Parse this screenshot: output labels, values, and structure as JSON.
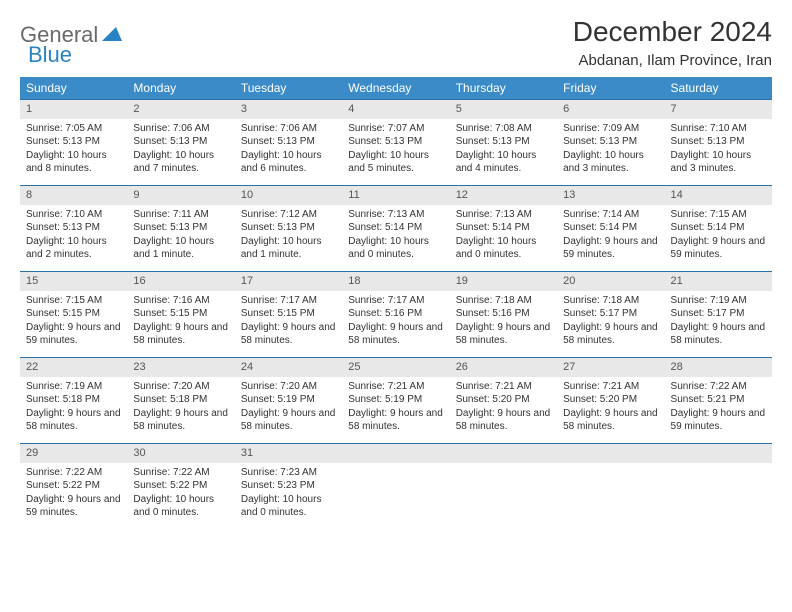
{
  "logo": {
    "part1": "General",
    "part2": "Blue"
  },
  "title": "December 2024",
  "location": "Abdanan, Ilam Province, Iran",
  "colors": {
    "header_bg": "#3b8bc8",
    "header_text": "#ffffff",
    "cell_border": "#2a6fa5",
    "daynum_bg": "#e8e8e8",
    "logo_gray": "#6b6b6b",
    "logo_blue": "#2984c5"
  },
  "weekdays": [
    "Sunday",
    "Monday",
    "Tuesday",
    "Wednesday",
    "Thursday",
    "Friday",
    "Saturday"
  ],
  "weeks": [
    [
      {
        "n": "1",
        "sr": "Sunrise: 7:05 AM",
        "ss": "Sunset: 5:13 PM",
        "dl": "Daylight: 10 hours and 8 minutes."
      },
      {
        "n": "2",
        "sr": "Sunrise: 7:06 AM",
        "ss": "Sunset: 5:13 PM",
        "dl": "Daylight: 10 hours and 7 minutes."
      },
      {
        "n": "3",
        "sr": "Sunrise: 7:06 AM",
        "ss": "Sunset: 5:13 PM",
        "dl": "Daylight: 10 hours and 6 minutes."
      },
      {
        "n": "4",
        "sr": "Sunrise: 7:07 AM",
        "ss": "Sunset: 5:13 PM",
        "dl": "Daylight: 10 hours and 5 minutes."
      },
      {
        "n": "5",
        "sr": "Sunrise: 7:08 AM",
        "ss": "Sunset: 5:13 PM",
        "dl": "Daylight: 10 hours and 4 minutes."
      },
      {
        "n": "6",
        "sr": "Sunrise: 7:09 AM",
        "ss": "Sunset: 5:13 PM",
        "dl": "Daylight: 10 hours and 3 minutes."
      },
      {
        "n": "7",
        "sr": "Sunrise: 7:10 AM",
        "ss": "Sunset: 5:13 PM",
        "dl": "Daylight: 10 hours and 3 minutes."
      }
    ],
    [
      {
        "n": "8",
        "sr": "Sunrise: 7:10 AM",
        "ss": "Sunset: 5:13 PM",
        "dl": "Daylight: 10 hours and 2 minutes."
      },
      {
        "n": "9",
        "sr": "Sunrise: 7:11 AM",
        "ss": "Sunset: 5:13 PM",
        "dl": "Daylight: 10 hours and 1 minute."
      },
      {
        "n": "10",
        "sr": "Sunrise: 7:12 AM",
        "ss": "Sunset: 5:13 PM",
        "dl": "Daylight: 10 hours and 1 minute."
      },
      {
        "n": "11",
        "sr": "Sunrise: 7:13 AM",
        "ss": "Sunset: 5:14 PM",
        "dl": "Daylight: 10 hours and 0 minutes."
      },
      {
        "n": "12",
        "sr": "Sunrise: 7:13 AM",
        "ss": "Sunset: 5:14 PM",
        "dl": "Daylight: 10 hours and 0 minutes."
      },
      {
        "n": "13",
        "sr": "Sunrise: 7:14 AM",
        "ss": "Sunset: 5:14 PM",
        "dl": "Daylight: 9 hours and 59 minutes."
      },
      {
        "n": "14",
        "sr": "Sunrise: 7:15 AM",
        "ss": "Sunset: 5:14 PM",
        "dl": "Daylight: 9 hours and 59 minutes."
      }
    ],
    [
      {
        "n": "15",
        "sr": "Sunrise: 7:15 AM",
        "ss": "Sunset: 5:15 PM",
        "dl": "Daylight: 9 hours and 59 minutes."
      },
      {
        "n": "16",
        "sr": "Sunrise: 7:16 AM",
        "ss": "Sunset: 5:15 PM",
        "dl": "Daylight: 9 hours and 58 minutes."
      },
      {
        "n": "17",
        "sr": "Sunrise: 7:17 AM",
        "ss": "Sunset: 5:15 PM",
        "dl": "Daylight: 9 hours and 58 minutes."
      },
      {
        "n": "18",
        "sr": "Sunrise: 7:17 AM",
        "ss": "Sunset: 5:16 PM",
        "dl": "Daylight: 9 hours and 58 minutes."
      },
      {
        "n": "19",
        "sr": "Sunrise: 7:18 AM",
        "ss": "Sunset: 5:16 PM",
        "dl": "Daylight: 9 hours and 58 minutes."
      },
      {
        "n": "20",
        "sr": "Sunrise: 7:18 AM",
        "ss": "Sunset: 5:17 PM",
        "dl": "Daylight: 9 hours and 58 minutes."
      },
      {
        "n": "21",
        "sr": "Sunrise: 7:19 AM",
        "ss": "Sunset: 5:17 PM",
        "dl": "Daylight: 9 hours and 58 minutes."
      }
    ],
    [
      {
        "n": "22",
        "sr": "Sunrise: 7:19 AM",
        "ss": "Sunset: 5:18 PM",
        "dl": "Daylight: 9 hours and 58 minutes."
      },
      {
        "n": "23",
        "sr": "Sunrise: 7:20 AM",
        "ss": "Sunset: 5:18 PM",
        "dl": "Daylight: 9 hours and 58 minutes."
      },
      {
        "n": "24",
        "sr": "Sunrise: 7:20 AM",
        "ss": "Sunset: 5:19 PM",
        "dl": "Daylight: 9 hours and 58 minutes."
      },
      {
        "n": "25",
        "sr": "Sunrise: 7:21 AM",
        "ss": "Sunset: 5:19 PM",
        "dl": "Daylight: 9 hours and 58 minutes."
      },
      {
        "n": "26",
        "sr": "Sunrise: 7:21 AM",
        "ss": "Sunset: 5:20 PM",
        "dl": "Daylight: 9 hours and 58 minutes."
      },
      {
        "n": "27",
        "sr": "Sunrise: 7:21 AM",
        "ss": "Sunset: 5:20 PM",
        "dl": "Daylight: 9 hours and 58 minutes."
      },
      {
        "n": "28",
        "sr": "Sunrise: 7:22 AM",
        "ss": "Sunset: 5:21 PM",
        "dl": "Daylight: 9 hours and 59 minutes."
      }
    ],
    [
      {
        "n": "29",
        "sr": "Sunrise: 7:22 AM",
        "ss": "Sunset: 5:22 PM",
        "dl": "Daylight: 9 hours and 59 minutes."
      },
      {
        "n": "30",
        "sr": "Sunrise: 7:22 AM",
        "ss": "Sunset: 5:22 PM",
        "dl": "Daylight: 10 hours and 0 minutes."
      },
      {
        "n": "31",
        "sr": "Sunrise: 7:23 AM",
        "ss": "Sunset: 5:23 PM",
        "dl": "Daylight: 10 hours and 0 minutes."
      },
      null,
      null,
      null,
      null
    ]
  ]
}
